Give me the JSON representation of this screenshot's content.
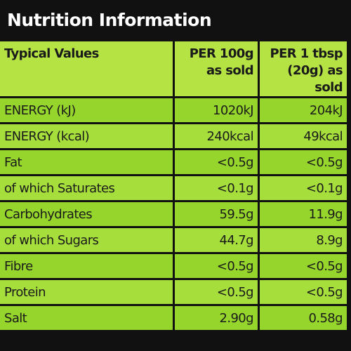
{
  "header": {
    "title": "Nutrition Information"
  },
  "table": {
    "columns": [
      "Typical Values",
      "PER 100g\nas sold",
      "PER 1 tbsp\n(20g) as sold"
    ],
    "rows": [
      [
        "ENERGY (kJ)",
        "1020kJ",
        "204kJ"
      ],
      [
        "ENERGY (kcal)",
        "240kcal",
        "49kcal"
      ],
      [
        "Fat",
        "<0.5g",
        "<0.5g"
      ],
      [
        "of which Saturates",
        "<0.1g",
        "<0.1g"
      ],
      [
        "Carbohydrates",
        "59.5g",
        "11.9g"
      ],
      [
        "of which Sugars",
        "44.7g",
        "8.9g"
      ],
      [
        "Fibre",
        "<0.5g",
        "<0.5g"
      ],
      [
        "Protein",
        "<0.5g",
        "<0.5g"
      ],
      [
        "Salt",
        "2.90g",
        "0.58g"
      ]
    ]
  }
}
